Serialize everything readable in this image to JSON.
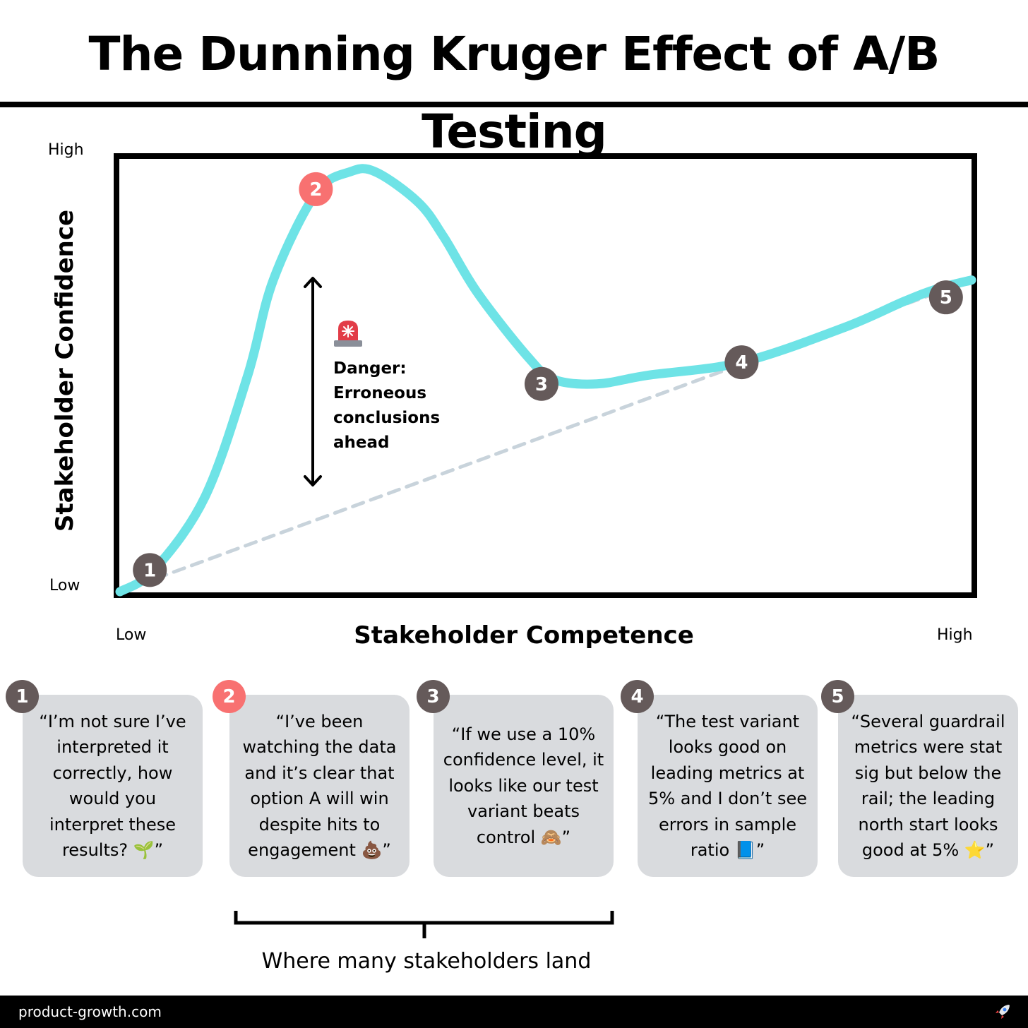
{
  "title": "The Dunning Kruger Effect of A/B Testing",
  "axes": {
    "y_title": "Stakeholder Confidence",
    "x_title": "Stakeholder Competence",
    "y_high": "High",
    "y_low": "Low",
    "x_low": "Low",
    "x_high": "High"
  },
  "chart_data": {
    "type": "line",
    "xlabel": "Stakeholder Competence",
    "ylabel": "Stakeholder Confidence",
    "xlim": [
      0,
      100
    ],
    "ylim": [
      0,
      100
    ],
    "series": [
      {
        "style": "solid",
        "color": "#6ee3e6",
        "x": [
          0,
          4,
          10,
          15,
          18,
          23,
          27,
          30,
          35,
          38,
          42,
          48,
          51,
          56,
          62,
          73,
          85,
          92,
          96,
          100
        ],
        "y": [
          0,
          5,
          22,
          50,
          72,
          92,
          97,
          97,
          90,
          82,
          69,
          54,
          49,
          48,
          50,
          53,
          61,
          67,
          70,
          72
        ]
      },
      {
        "style": "dashed",
        "color": "#c8d3db",
        "x": [
          0,
          100
        ],
        "y": [
          0,
          72
        ]
      }
    ],
    "points": [
      {
        "label": "1",
        "x": 3.5,
        "y": 5,
        "color": "#655a5a"
      },
      {
        "label": "2",
        "x": 23,
        "y": 93,
        "color": "#f87171"
      },
      {
        "label": "3",
        "x": 49.5,
        "y": 48,
        "color": "#655a5a"
      },
      {
        "label": "4",
        "x": 73,
        "y": 53,
        "color": "#655a5a"
      },
      {
        "label": "5",
        "x": 97,
        "y": 68,
        "color": "#655a5a"
      }
    ]
  },
  "danger": {
    "icon": "siren-icon",
    "text": "Danger: Erroneous conclusions ahead"
  },
  "stages": [
    {
      "number": "1",
      "quote": "“I’m not sure I’ve interpreted it correctly, how would you interpret these results? 🌱”",
      "badge_color": "#655a5a"
    },
    {
      "number": "2",
      "quote": "“I’ve been watching the data and it’s clear that option A will win despite hits to engagement 💩”",
      "badge_color": "#f87171"
    },
    {
      "number": "3",
      "quote": "“If we use a 10% confidence level, it looks like our test variant beats control 🙈”",
      "badge_color": "#655a5a"
    },
    {
      "number": "4",
      "quote": "“The test variant looks good on leading metrics at 5% and I don’t see errors in sample ratio 📘”",
      "badge_color": "#655a5a"
    },
    {
      "number": "5",
      "quote": "“Several guardrail metrics were stat sig but below the rail; the leading north start looks good at 5% ⭐”",
      "badge_color": "#655a5a"
    }
  ],
  "bracket_label": "Where many stakeholders land",
  "footer": {
    "site": "product-growth.com",
    "icon": "rocket-icon"
  }
}
